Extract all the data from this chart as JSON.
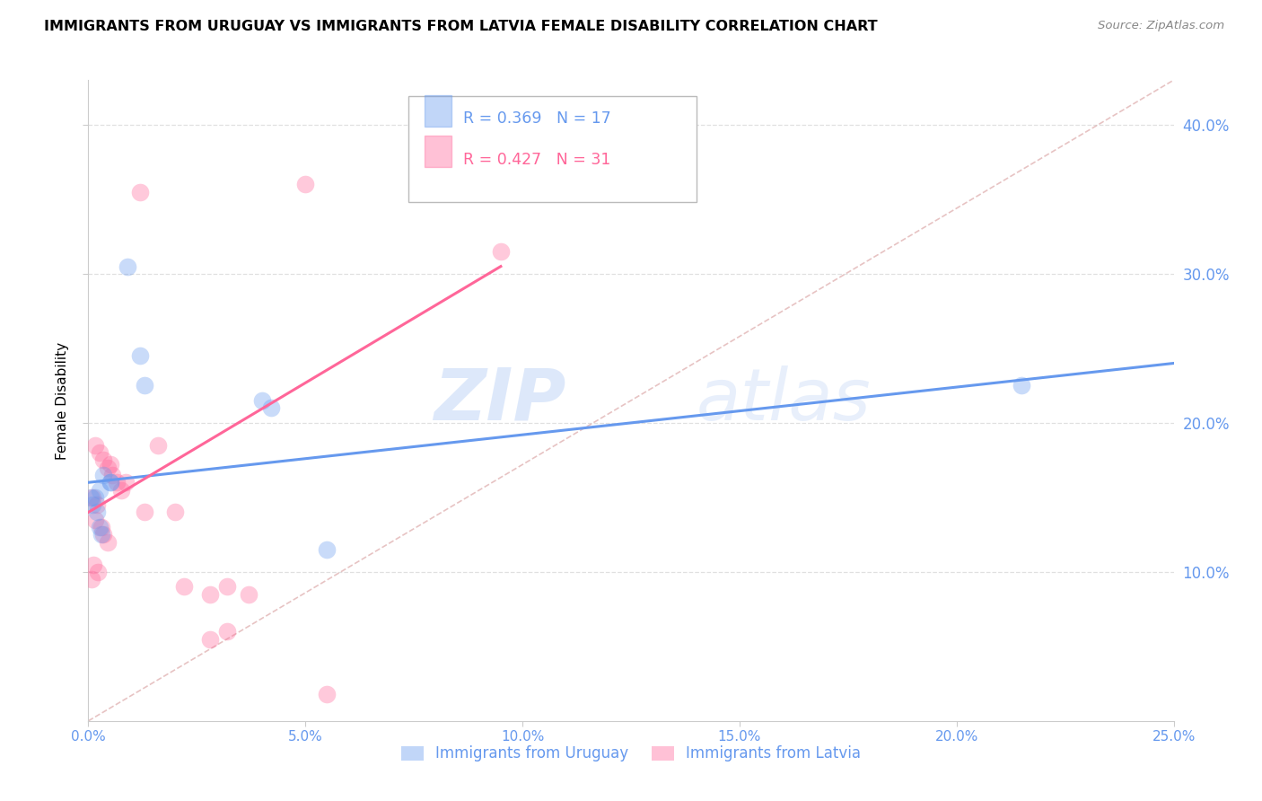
{
  "title": "IMMIGRANTS FROM URUGUAY VS IMMIGRANTS FROM LATVIA FEMALE DISABILITY CORRELATION CHART",
  "source": "Source: ZipAtlas.com",
  "ylabel": "Female Disability",
  "xlim": [
    0.0,
    25.0
  ],
  "ylim": [
    0.0,
    43.0
  ],
  "yticks": [
    10.0,
    20.0,
    30.0,
    40.0
  ],
  "xticks": [
    0.0,
    5.0,
    10.0,
    15.0,
    20.0,
    25.0
  ],
  "legend_entries": [
    "Immigrants from Uruguay",
    "Immigrants from Latvia"
  ],
  "legend_R": [
    "R = 0.369",
    "R = 0.427"
  ],
  "legend_N": [
    "N = 17",
    "N = 31"
  ],
  "uruguay_color": "#6699EE",
  "latvia_color": "#FF6699",
  "uruguay_scatter": [
    [
      0.5,
      16.0
    ],
    [
      0.9,
      30.5
    ],
    [
      1.2,
      24.5
    ],
    [
      1.3,
      22.5
    ],
    [
      0.35,
      16.5
    ],
    [
      0.5,
      16.0
    ],
    [
      0.25,
      15.5
    ],
    [
      0.15,
      15.0
    ],
    [
      0.1,
      14.5
    ],
    [
      0.2,
      14.0
    ],
    [
      0.3,
      12.5
    ],
    [
      0.25,
      13.0
    ],
    [
      4.0,
      21.5
    ],
    [
      4.2,
      21.0
    ],
    [
      5.5,
      11.5
    ],
    [
      21.5,
      22.5
    ],
    [
      0.05,
      15.0
    ]
  ],
  "latvia_scatter": [
    [
      1.2,
      35.5
    ],
    [
      5.0,
      36.0
    ],
    [
      9.5,
      31.5
    ],
    [
      0.15,
      18.5
    ],
    [
      0.25,
      18.0
    ],
    [
      0.35,
      17.5
    ],
    [
      0.45,
      17.0
    ],
    [
      0.55,
      16.5
    ],
    [
      0.65,
      16.0
    ],
    [
      0.75,
      15.5
    ],
    [
      0.1,
      15.0
    ],
    [
      0.2,
      14.5
    ],
    [
      0.15,
      13.5
    ],
    [
      0.3,
      13.0
    ],
    [
      0.35,
      12.5
    ],
    [
      0.45,
      12.0
    ],
    [
      1.6,
      18.5
    ],
    [
      2.0,
      14.0
    ],
    [
      2.2,
      9.0
    ],
    [
      2.8,
      8.5
    ],
    [
      3.2,
      9.0
    ],
    [
      3.7,
      8.5
    ],
    [
      2.8,
      5.5
    ],
    [
      3.2,
      6.0
    ],
    [
      5.5,
      1.8
    ],
    [
      0.12,
      10.5
    ],
    [
      0.22,
      10.0
    ],
    [
      0.08,
      9.5
    ],
    [
      0.5,
      17.2
    ],
    [
      0.85,
      16.0
    ],
    [
      1.3,
      14.0
    ]
  ],
  "uruguay_line": [
    [
      0.0,
      16.0
    ],
    [
      25.0,
      24.0
    ]
  ],
  "latvia_line": [
    [
      0.0,
      14.0
    ],
    [
      9.5,
      30.5
    ]
  ],
  "diagonal_line": [
    [
      0.0,
      0.0
    ],
    [
      25.0,
      43.0
    ]
  ],
  "watermark_zip": "ZIP",
  "watermark_atlas": "atlas",
  "background_color": "#FFFFFF",
  "grid_color": "#E0E0E0"
}
